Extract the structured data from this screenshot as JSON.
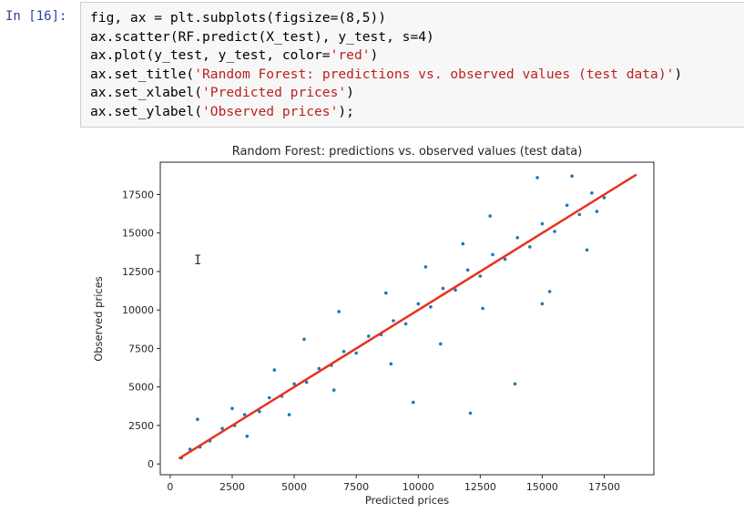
{
  "cell": {
    "prompt": "In [16]:",
    "code": [
      [
        {
          "t": "fig, ax = plt.subplots(figsize=(8,5))"
        }
      ],
      [
        {
          "t": "ax.scatter(RF.predict(X_test), y_test, s=4)"
        }
      ],
      [
        {
          "t": "ax.plot(y_test, y_test, color="
        },
        {
          "t": "'red'",
          "c": "s"
        },
        {
          "t": ")"
        }
      ],
      [
        {
          "t": "ax.set_title("
        },
        {
          "t": "'Random Forest: predictions vs. observed values (test data)'",
          "c": "s"
        },
        {
          "t": ")"
        }
      ],
      [
        {
          "t": "ax.set_xlabel("
        },
        {
          "t": "'Predicted prices'",
          "c": "s"
        },
        {
          "t": ")"
        }
      ],
      [
        {
          "t": "ax.set_ylabel("
        },
        {
          "t": "'Observed prices'",
          "c": "s"
        },
        {
          "t": ");"
        }
      ]
    ]
  },
  "colors": {
    "points": "#1f77b4",
    "line": "#e8321e"
  },
  "chart_data": {
    "type": "scatter",
    "title": "Random Forest: predictions vs. observed values (test data)",
    "xlabel": "Predicted prices",
    "ylabel": "Observed prices",
    "xlim": [
      -400,
      19500
    ],
    "ylim": [
      -700,
      19600
    ],
    "xticks": [
      0,
      2500,
      5000,
      7500,
      10000,
      12500,
      15000,
      17500
    ],
    "yticks": [
      0,
      2500,
      5000,
      7500,
      10000,
      12500,
      15000,
      17500
    ],
    "xtick_labels": [
      "0",
      "2500",
      "5000",
      "7500",
      "10000",
      "12500",
      "15000",
      "17500"
    ],
    "ytick_labels": [
      "0",
      "2500",
      "5000",
      "7500",
      "10000",
      "12500",
      "15000",
      "17500"
    ],
    "series": [
      {
        "type": "scatter",
        "points": [
          [
            450,
            400
          ],
          [
            800,
            950
          ],
          [
            1200,
            1100
          ],
          [
            1600,
            1500
          ],
          [
            2100,
            2300
          ],
          [
            2600,
            2500
          ],
          [
            3000,
            3200
          ],
          [
            3600,
            3400
          ],
          [
            4000,
            4300
          ],
          [
            4500,
            4400
          ],
          [
            5000,
            5200
          ],
          [
            5500,
            5300
          ],
          [
            6000,
            6200
          ],
          [
            6500,
            6400
          ],
          [
            7000,
            7300
          ],
          [
            7500,
            7200
          ],
          [
            8000,
            8300
          ],
          [
            8500,
            8400
          ],
          [
            9000,
            9300
          ],
          [
            9500,
            9100
          ],
          [
            10000,
            10400
          ],
          [
            10500,
            10200
          ],
          [
            11000,
            11400
          ],
          [
            11500,
            11300
          ],
          [
            12000,
            12600
          ],
          [
            12500,
            12200
          ],
          [
            13000,
            13600
          ],
          [
            13500,
            13300
          ],
          [
            14000,
            14700
          ],
          [
            14500,
            14100
          ],
          [
            15000,
            15600
          ],
          [
            15500,
            15100
          ],
          [
            16000,
            16800
          ],
          [
            16500,
            16200
          ],
          [
            17000,
            17600
          ],
          [
            17500,
            17300
          ],
          [
            1100,
            2900
          ],
          [
            2500,
            3600
          ],
          [
            4200,
            6100
          ],
          [
            5400,
            8100
          ],
          [
            6800,
            9900
          ],
          [
            8700,
            11100
          ],
          [
            10300,
            12800
          ],
          [
            11800,
            14300
          ],
          [
            12900,
            16100
          ],
          [
            14800,
            18600
          ],
          [
            16200,
            18700
          ],
          [
            3100,
            1800
          ],
          [
            4800,
            3200
          ],
          [
            6600,
            4800
          ],
          [
            8900,
            6500
          ],
          [
            10900,
            7800
          ],
          [
            12600,
            10100
          ],
          [
            13900,
            5200
          ],
          [
            15300,
            11200
          ],
          [
            16800,
            13900
          ],
          [
            9800,
            4000
          ],
          [
            12100,
            3300
          ],
          [
            15000,
            10400
          ],
          [
            17200,
            16400
          ]
        ]
      },
      {
        "type": "line",
        "points": [
          [
            350,
            350
          ],
          [
            18800,
            18800
          ]
        ]
      }
    ]
  }
}
